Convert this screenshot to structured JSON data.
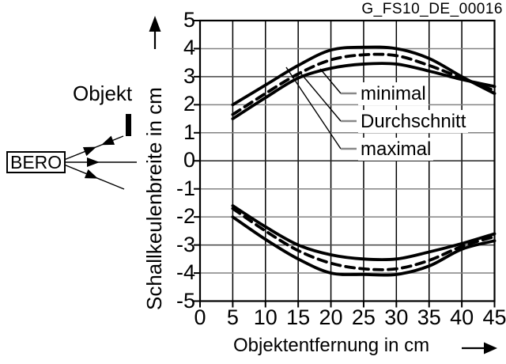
{
  "figure_id": "G_FS10_DE_00016",
  "sensor_diagram": {
    "sensor_label": "BERO",
    "object_label": "Objekt"
  },
  "colors": {
    "curve": "#000000",
    "grid_minor": "#828282",
    "grid_emphasis": "#444444",
    "grid_zero": "#222222",
    "axis": "#000000",
    "leader_dash": "#888888",
    "background": "#ffffff"
  },
  "chart_data": {
    "type": "line",
    "title": "",
    "xlabel": "Objektentfernung in cm",
    "ylabel": "Schallkeulenbreite in cm",
    "xlim": [
      0,
      45
    ],
    "ylim": [
      -5,
      5
    ],
    "grid": true,
    "x_ticks": [
      0,
      5,
      10,
      15,
      20,
      25,
      30,
      35,
      40,
      45
    ],
    "y_ticks": [
      5,
      4,
      3,
      2,
      1,
      0,
      -1,
      -2,
      -3,
      -4,
      -5
    ],
    "x": [
      5,
      10,
      15,
      20,
      25,
      30,
      35,
      40,
      45
    ],
    "series": [
      {
        "name": "maximal",
        "style": "solid",
        "upper": [
          2.0,
          2.7,
          3.4,
          3.95,
          4.05,
          4.0,
          3.65,
          3.0,
          2.4
        ],
        "lower": [
          -2.0,
          -2.8,
          -3.5,
          -4.0,
          -4.05,
          -4.05,
          -3.75,
          -3.15,
          -2.85
        ]
      },
      {
        "name": "Durchschnitt",
        "style": "dashed",
        "upper": [
          1.65,
          2.4,
          3.1,
          3.6,
          3.78,
          3.75,
          3.4,
          2.95,
          2.5
        ],
        "lower": [
          -1.7,
          -2.5,
          -3.2,
          -3.65,
          -3.85,
          -3.85,
          -3.55,
          -3.05,
          -2.7
        ]
      },
      {
        "name": "minimal",
        "style": "solid",
        "upper": [
          1.5,
          2.25,
          2.95,
          3.3,
          3.45,
          3.45,
          3.2,
          2.9,
          2.65
        ],
        "lower": [
          -1.6,
          -2.35,
          -3.0,
          -3.35,
          -3.5,
          -3.5,
          -3.25,
          -2.95,
          -2.6
        ]
      }
    ],
    "legend_position": "inside-right"
  }
}
